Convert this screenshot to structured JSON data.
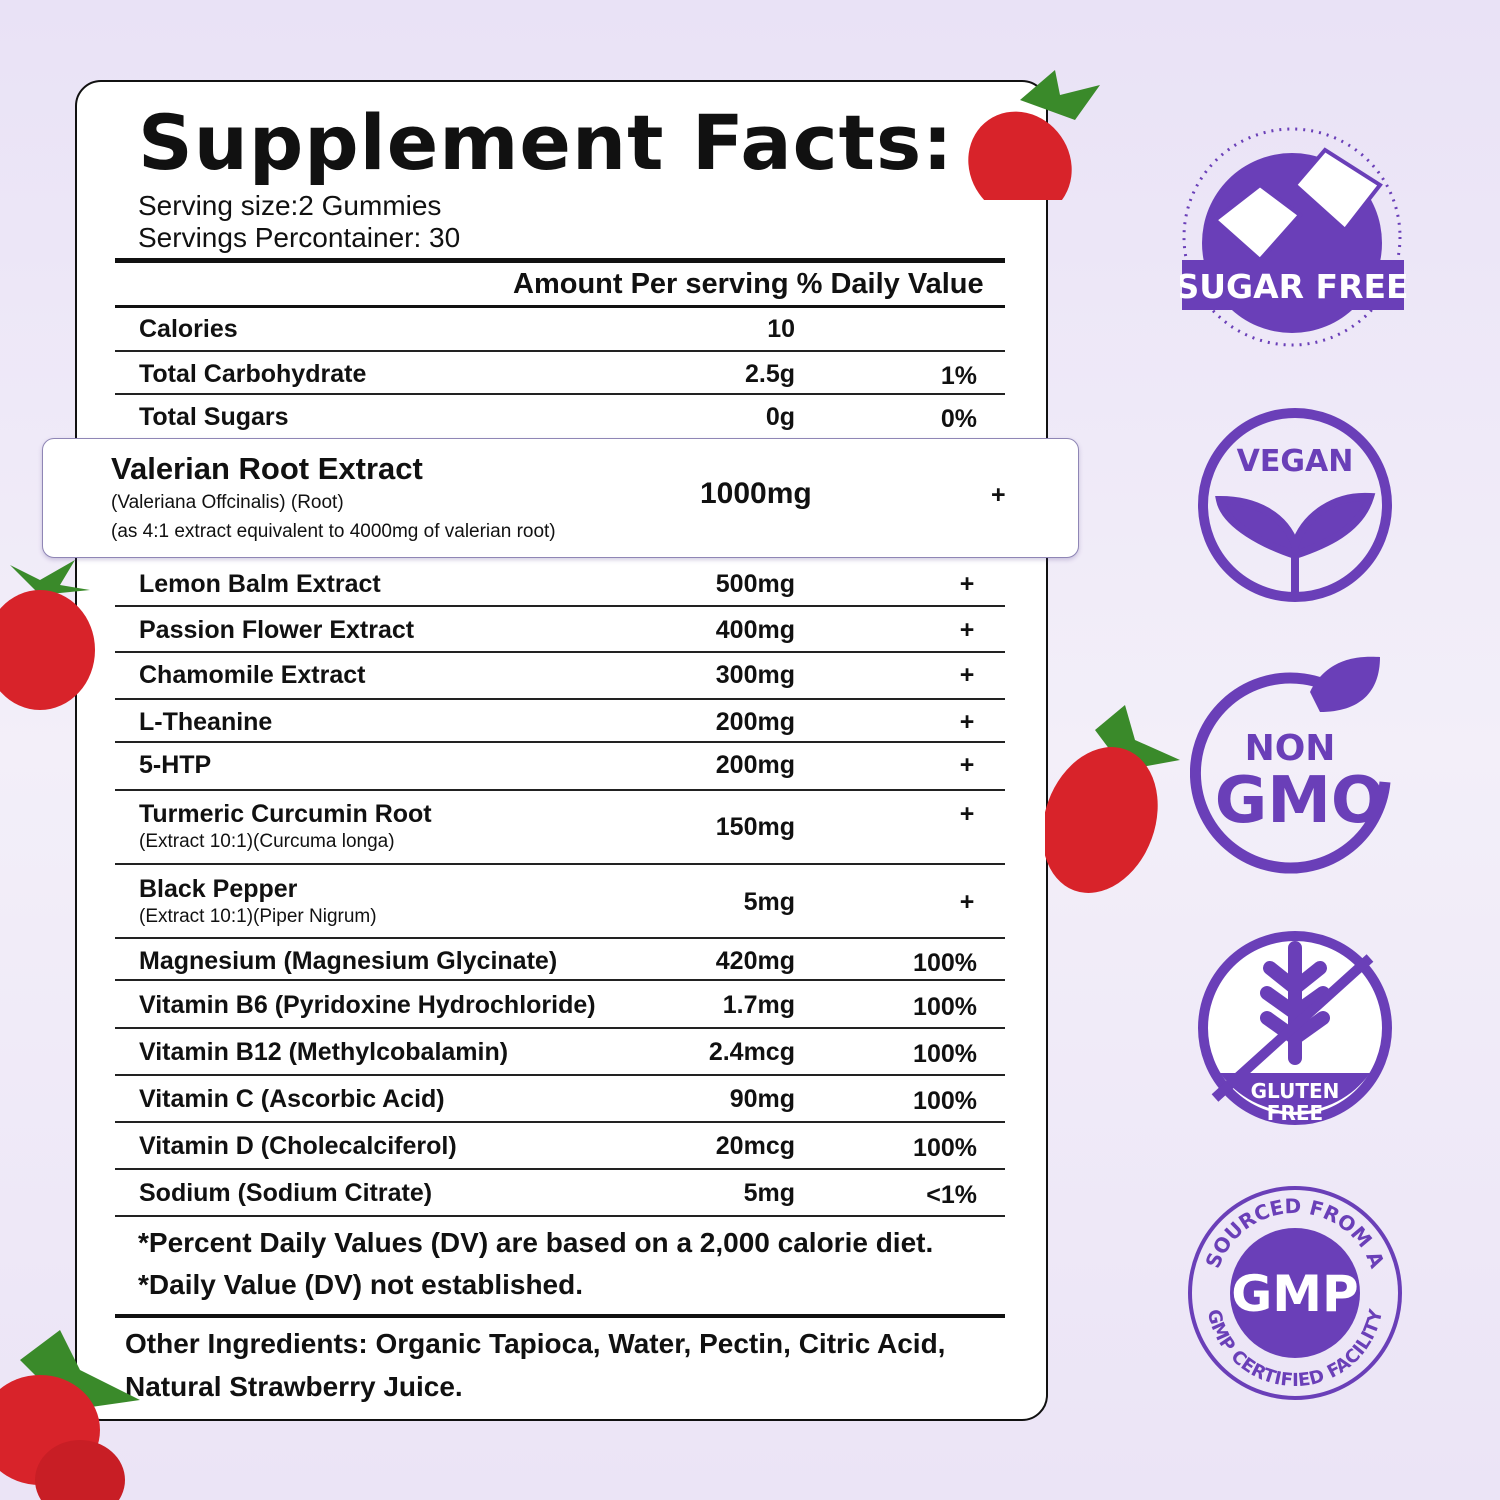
{
  "title": "Supplement Facts:",
  "serving_size": "Serving size:2 Gummies",
  "servings_per_container": "Servings Percontainer: 30",
  "header": "Amount Per serving % Daily Value",
  "rows": [
    {
      "name": "Calories",
      "amount": "10",
      "dv": ""
    },
    {
      "name": "Total Carbohydrate",
      "amount": "2.5g",
      "dv": "1%"
    },
    {
      "name": "Total Sugars",
      "amount": "0g",
      "dv": "0%"
    },
    {
      "name": "Lemon Balm Extract",
      "amount": "500mg",
      "dv": "+"
    },
    {
      "name": "Passion Flower Extract",
      "amount": "400mg",
      "dv": "+"
    },
    {
      "name": "Chamomile Extract",
      "amount": "300mg",
      "dv": "+"
    },
    {
      "name": "L-Theanine",
      "amount": "200mg",
      "dv": "+"
    },
    {
      "name": "5-HTP",
      "amount": "200mg",
      "dv": "+"
    },
    {
      "name": "Turmeric Curcumin Root",
      "sub": "(Extract 10:1)(Curcuma longa)",
      "amount": "150mg",
      "dv": "+"
    },
    {
      "name": "Black Pepper",
      "sub": "(Extract 10:1)(Piper Nigrum)",
      "amount": "5mg",
      "dv": "+"
    },
    {
      "name": "Magnesium (Magnesium Glycinate)",
      "amount": "420mg",
      "dv": "100%"
    },
    {
      "name": "Vitamin B6 (Pyridoxine Hydrochloride)",
      "amount": "1.7mg",
      "dv": "100%"
    },
    {
      "name": "Vitamin B12 (Methylcobalamin)",
      "amount": "2.4mcg",
      "dv": "100%"
    },
    {
      "name": "Vitamin C (Ascorbic Acid)",
      "amount": "90mg",
      "dv": "100%"
    },
    {
      "name": "Vitamin D (Cholecalciferol)",
      "amount": "20mcg",
      "dv": "100%"
    },
    {
      "name": "Sodium (Sodium Citrate)",
      "amount": "5mg",
      "dv": "<1%"
    }
  ],
  "highlight": {
    "name": "Valerian Root Extract",
    "sub1": "(Valeriana Offcinalis) (Root)",
    "sub2": "(as 4:1 extract equivalent to 4000mg of valerian root)",
    "amount": "1000mg",
    "dv": "+"
  },
  "footnotes": [
    "*Percent Daily Values (DV) are based on a 2,000 calorie diet.",
    "*Daily Value (DV) not established."
  ],
  "other_ingredients": "Other Ingredients: Organic Tapioca, Water, Pectin, Citric Acid, Natural Strawberry Juice.",
  "badges": {
    "sugar_free": "SUGAR FREE",
    "vegan": "VEGAN",
    "non": "NON",
    "gmo": "GMO",
    "gluten": "GLUTEN",
    "free": "FREE",
    "gmp": "GMP",
    "gmp_top": "SOURCED FROM A",
    "gmp_bottom": "GMP CERTIFIED FACILITY"
  },
  "colors": {
    "accent": "#6a3fb8",
    "strawberry": "#d8232a",
    "background": "#ede7f7"
  }
}
